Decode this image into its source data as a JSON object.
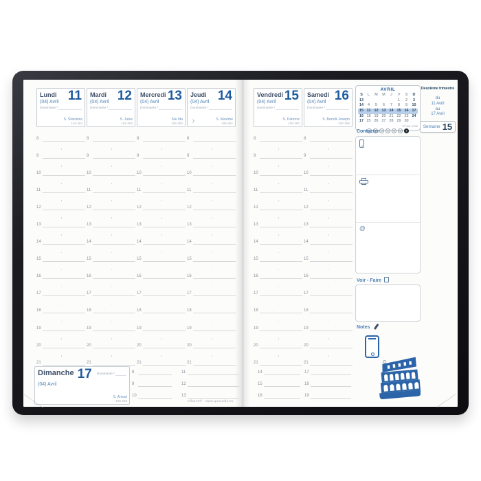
{
  "colors": {
    "accent_blue": "#1d5b9e",
    "mid_blue": "#4e82b6",
    "dark_slate": "#3f5068",
    "graphic_blue": "#2b64a8",
    "highlight_band": "#b9cfe9",
    "cover_black": "#15151a",
    "line_gray": "#d5d8da"
  },
  "week_days": [
    {
      "name": "Lundi",
      "number": "11",
      "month": "(04) Avril",
      "dominante_label": "Dominante *",
      "saint": "S. Stanislas",
      "day_count": "102-264",
      "moon": ""
    },
    {
      "name": "Mardi",
      "number": "12",
      "month": "(04) Avril",
      "dominante_label": "Dominante *",
      "saint": "S. Jules",
      "day_count": "103-263",
      "moon": ""
    },
    {
      "name": "Mercredi",
      "number": "13",
      "month": "(04) Avril",
      "dominante_label": "Dominante *",
      "saint": "Ste Ida",
      "day_count": "104-262",
      "moon": ""
    },
    {
      "name": "Jeudi",
      "number": "14",
      "month": "(04) Avril",
      "dominante_label": "Dominante *",
      "saint": "S. Maxime",
      "day_count": "105-261",
      "moon": "☽"
    },
    {
      "name": "Vendredi",
      "number": "15",
      "month": "(04) Avril",
      "dominante_label": "Dominante *",
      "saint": "S. Paterne",
      "day_count": "106-260",
      "moon": ""
    },
    {
      "name": "Samedi",
      "number": "16",
      "month": "(04) Avril",
      "dominante_label": "Dominante *",
      "saint": "S. Benoît-Joseph",
      "day_count": "107-259",
      "moon": ""
    }
  ],
  "hours": [
    "8",
    "9",
    "10",
    "11",
    "12",
    "13",
    "14",
    "15",
    "16",
    "17",
    "18",
    "19",
    "20",
    "21"
  ],
  "sunday": {
    "name": "Dimanche",
    "number": "17",
    "month": "(04) Avril",
    "dominante_label": "Dominante *",
    "saint": "S. Anicet",
    "day_count": "108-258",
    "hour_groups": [
      [
        "8",
        "9",
        "10"
      ],
      [
        "11",
        "12",
        "13"
      ],
      [
        "14",
        "15",
        "16"
      ],
      [
        "17",
        "18",
        "19"
      ]
    ]
  },
  "footer": {
    "brand": "Affaires® - www.quovadis.eu"
  },
  "mini_calendar": {
    "title": "AVRIL",
    "week_col_header": "S",
    "day_headers": [
      "L",
      "M",
      "M",
      "J",
      "V",
      "S",
      "D"
    ],
    "weeks": [
      {
        "week_number": "13",
        "days": [
          "",
          "",
          "",
          "",
          "1",
          "2",
          "3"
        ],
        "highlight": false
      },
      {
        "week_number": "14",
        "days": [
          "4",
          "5",
          "6",
          "7",
          "8",
          "9",
          "10"
        ],
        "highlight": false
      },
      {
        "week_number": "15",
        "days": [
          "11",
          "12",
          "13",
          "14",
          "15",
          "16",
          "17"
        ],
        "highlight": true
      },
      {
        "week_number": "16",
        "days": [
          "18",
          "19",
          "20",
          "21",
          "22",
          "23",
          "24"
        ],
        "highlight": false
      },
      {
        "week_number": "17",
        "days": [
          "25",
          "26",
          "27",
          "28",
          "29",
          "30",
          ""
        ],
        "highlight": false
      }
    ],
    "footnote": "47 avr. mois",
    "reference_marks": [
      "1",
      "2",
      "3",
      "4",
      "5",
      "6",
      "7"
    ]
  },
  "sidebar": {
    "contact_label": "Contacter",
    "todo_label": "Voir - Faire",
    "notes_label": "Notes",
    "email_symbol": "@"
  },
  "trimester": {
    "title": "Deuxième trimestre",
    "from_label": "du",
    "from_value": "11 Avril",
    "to_label": "au",
    "to_value": "17 Avril",
    "week_label": "Semaine",
    "week_number": "15"
  }
}
